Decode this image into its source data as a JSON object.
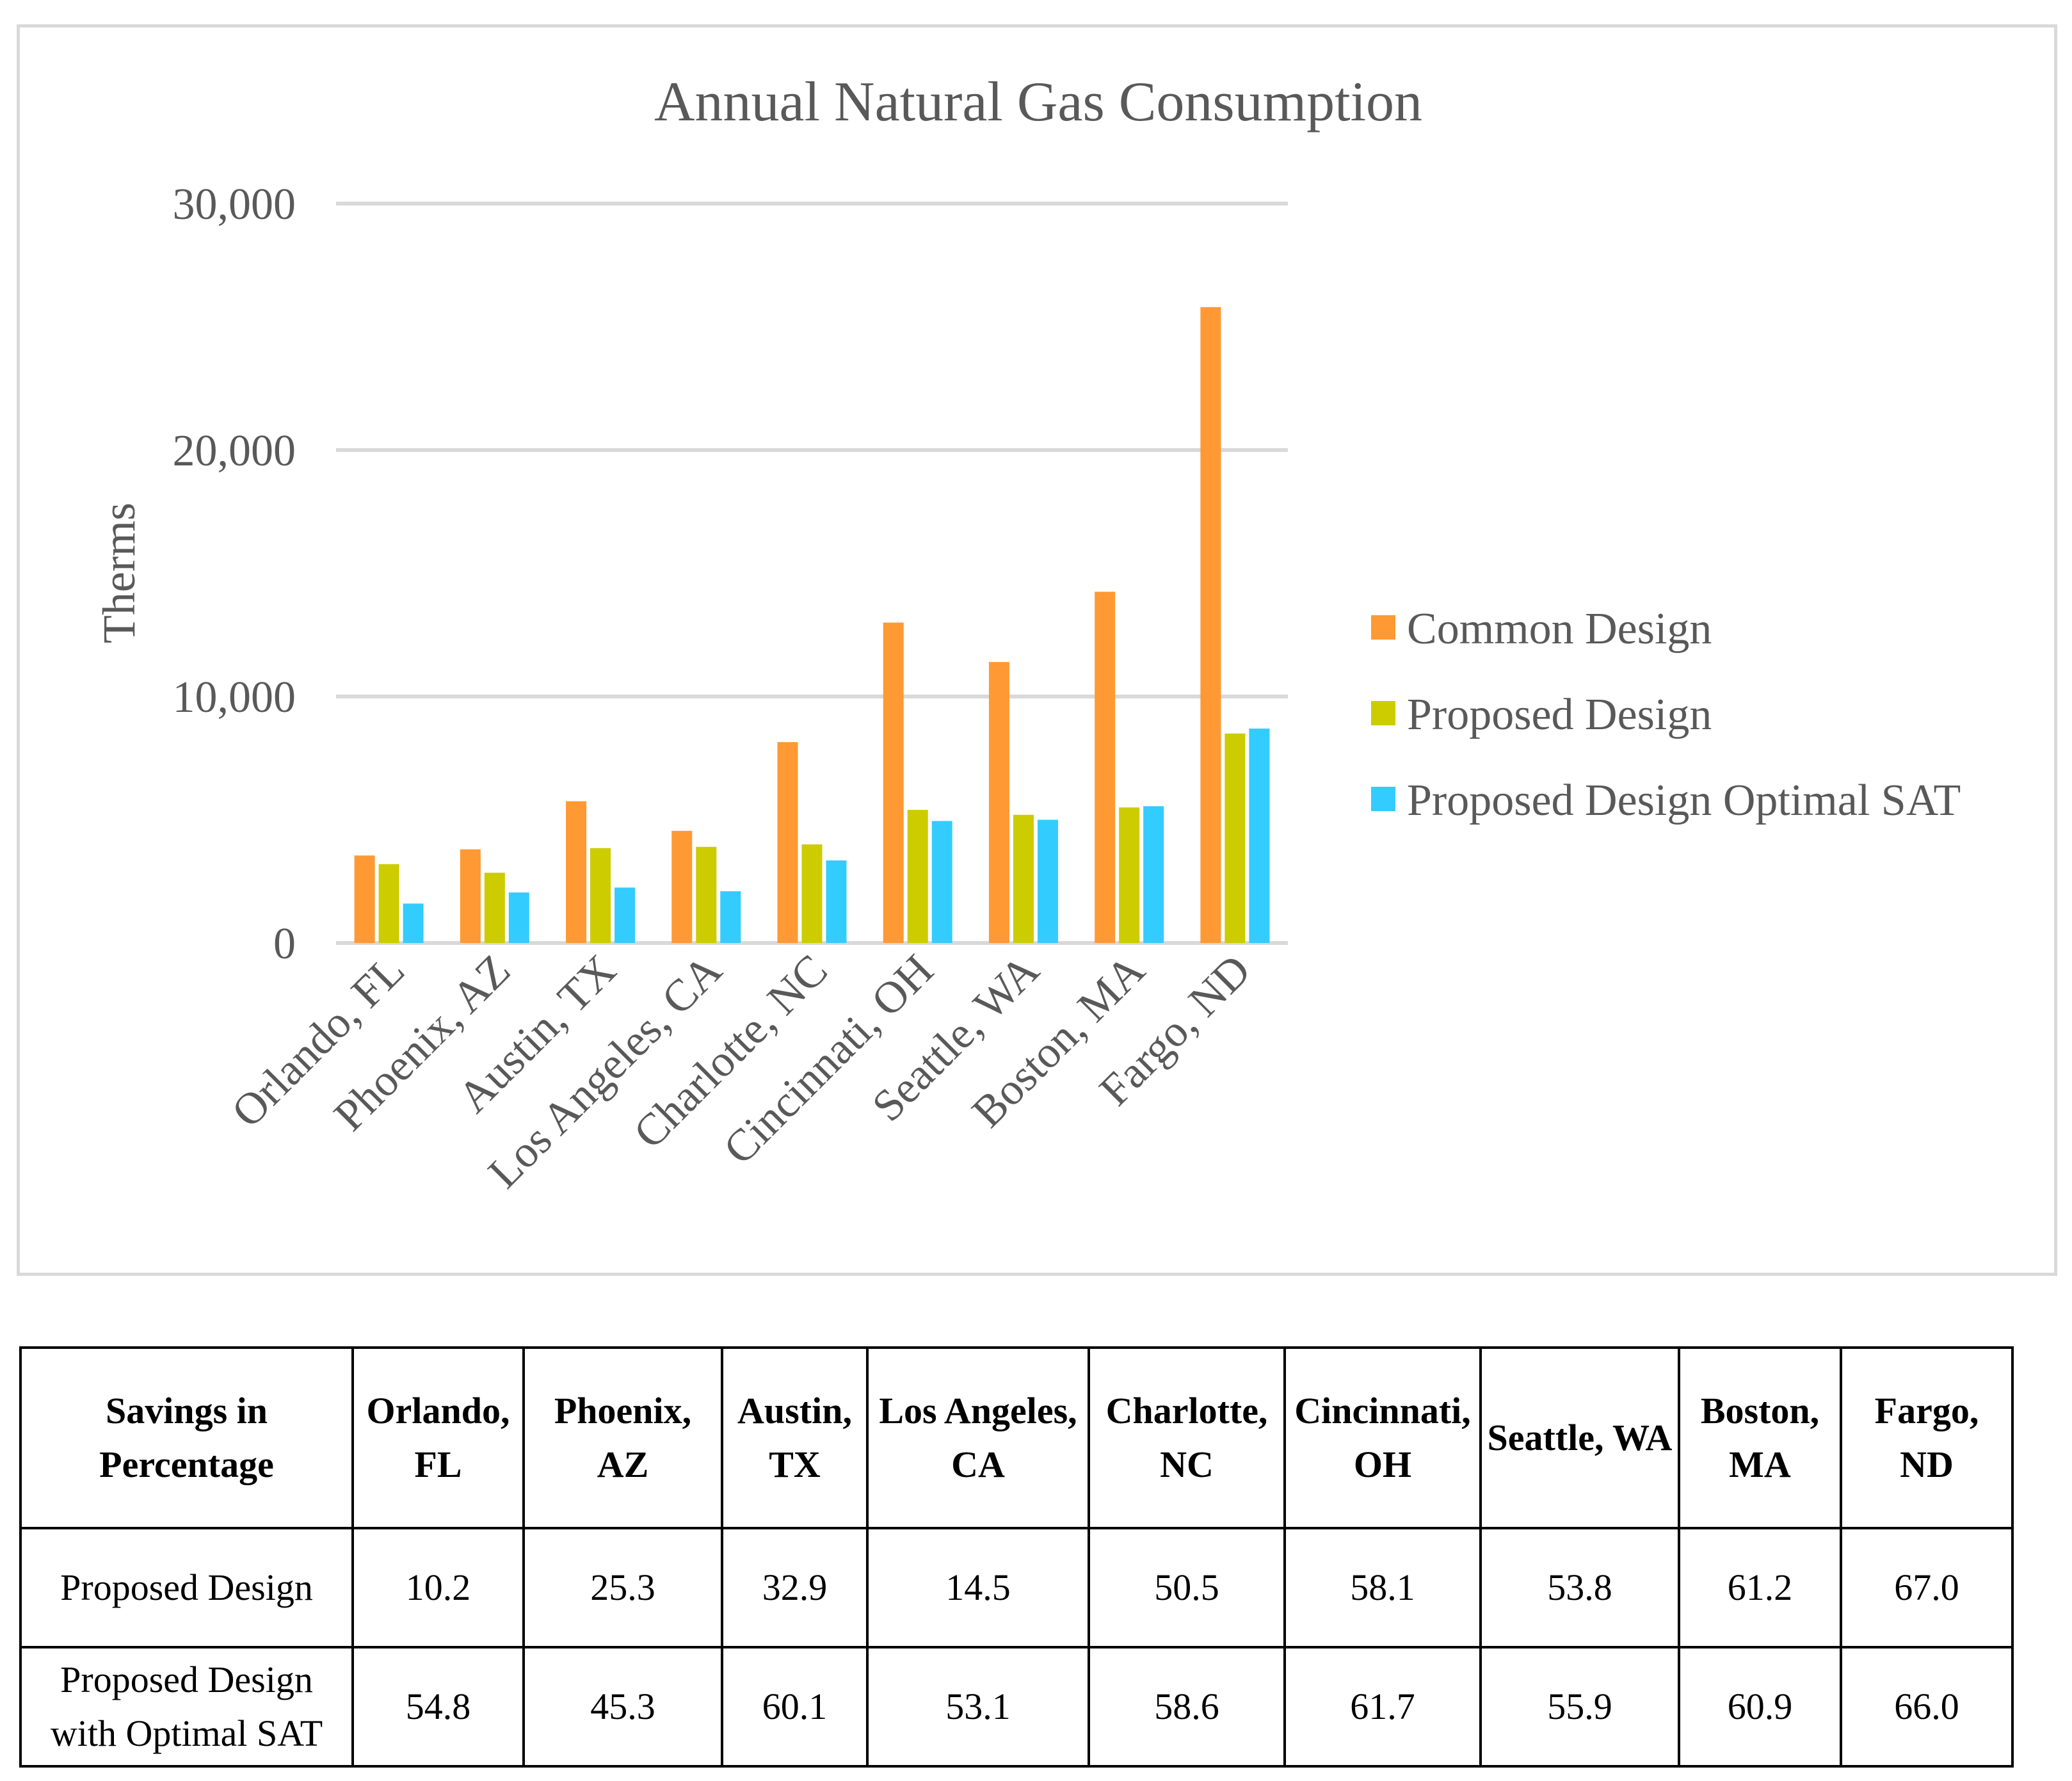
{
  "chart_data": {
    "type": "bar",
    "title": "Annual Natural Gas Consumption",
    "xlabel": "",
    "ylabel": "Therms",
    "ylim": [
      0,
      30000
    ],
    "yticks": [
      0,
      10000,
      20000,
      30000
    ],
    "ytick_labels": [
      "0",
      "10,000",
      "20,000",
      "30,000"
    ],
    "grid": true,
    "legend_position": "right",
    "categories": [
      "Orlando, FL",
      "Phoenix, AZ",
      "Austin, TX",
      "Los Angeles, CA",
      "Charlotte, NC",
      "Cincinnati, OH",
      "Seattle, WA",
      "Boston, MA",
      "Fargo, ND"
    ],
    "series": [
      {
        "name": "Common Design",
        "color": "#ff9933",
        "values": [
          3550,
          3800,
          5750,
          4550,
          8150,
          13000,
          11400,
          14250,
          25800
        ]
      },
      {
        "name": "Proposed Design",
        "color": "#cccc00",
        "values": [
          3200,
          2850,
          3850,
          3900,
          4000,
          5400,
          5200,
          5500,
          8500
        ]
      },
      {
        "name": "Proposed Design Optimal SAT",
        "color": "#33ccff",
        "values": [
          1600,
          2050,
          2250,
          2100,
          3350,
          4950,
          5000,
          5550,
          8700
        ]
      }
    ]
  },
  "table": {
    "corner": "Savings in Percentage",
    "columns": [
      "Orlando, FL",
      "Phoenix, AZ",
      "Austin, TX",
      "Los Angeles, CA",
      "Charlotte, NC",
      "Cincinnati, OH",
      "Seattle, WA",
      "Boston, MA",
      "Fargo, ND"
    ],
    "rows": [
      {
        "label": "Proposed Design",
        "values": [
          "10.2",
          "25.3",
          "32.9",
          "14.5",
          "50.5",
          "58.1",
          "53.8",
          "61.2",
          "67.0"
        ]
      },
      {
        "label": "Proposed Design with Optimal SAT",
        "values": [
          "54.8",
          "45.3",
          "60.1",
          "53.1",
          "58.6",
          "61.7",
          "55.9",
          "60.9",
          "66.0"
        ]
      }
    ]
  }
}
